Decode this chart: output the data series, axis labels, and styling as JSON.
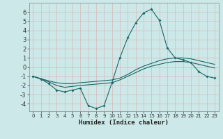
{
  "xlabel": "Humidex (Indice chaleur)",
  "bg_color": "#cce8e8",
  "grid_color": "#c0d8d8",
  "line_color": "#1a6666",
  "xlim": [
    -0.5,
    23.5
  ],
  "ylim": [
    -4.8,
    7.0
  ],
  "xticks": [
    0,
    1,
    2,
    3,
    4,
    5,
    6,
    7,
    8,
    9,
    10,
    11,
    12,
    13,
    14,
    15,
    16,
    17,
    18,
    19,
    20,
    21,
    22,
    23
  ],
  "yticks": [
    -4,
    -3,
    -2,
    -1,
    0,
    1,
    2,
    3,
    4,
    5,
    6
  ],
  "line1_x": [
    0,
    1,
    2,
    3,
    4,
    5,
    6,
    7,
    8,
    9,
    10,
    11,
    12,
    13,
    14,
    15,
    16,
    17,
    18,
    19,
    20,
    21,
    22,
    23
  ],
  "line1_y": [
    -1.0,
    -1.3,
    -1.8,
    -2.5,
    -2.7,
    -2.5,
    -2.3,
    -4.2,
    -4.5,
    -4.2,
    -1.7,
    1.0,
    3.2,
    4.8,
    5.9,
    6.3,
    5.1,
    2.1,
    1.0,
    0.8,
    0.5,
    -0.5,
    -1.0,
    -1.2
  ],
  "line2_x": [
    0,
    2,
    3,
    4,
    5,
    6,
    10,
    11,
    12,
    13,
    14,
    15,
    16,
    17,
    18,
    19,
    20,
    21,
    22,
    23
  ],
  "line2_y": [
    -1.0,
    -1.5,
    -1.7,
    -1.8,
    -1.8,
    -1.7,
    -1.4,
    -1.2,
    -0.8,
    -0.3,
    0.1,
    0.4,
    0.7,
    0.9,
    1.0,
    1.0,
    0.9,
    0.7,
    0.5,
    0.3
  ],
  "line3_x": [
    0,
    2,
    3,
    4,
    5,
    6,
    10,
    11,
    12,
    13,
    14,
    15,
    16,
    17,
    18,
    19,
    20,
    21,
    22,
    23
  ],
  "line3_y": [
    -1.0,
    -1.6,
    -2.0,
    -2.2,
    -2.1,
    -2.0,
    -1.7,
    -1.4,
    -1.0,
    -0.6,
    -0.2,
    0.1,
    0.3,
    0.5,
    0.6,
    0.6,
    0.5,
    0.3,
    0.1,
    -0.1
  ]
}
